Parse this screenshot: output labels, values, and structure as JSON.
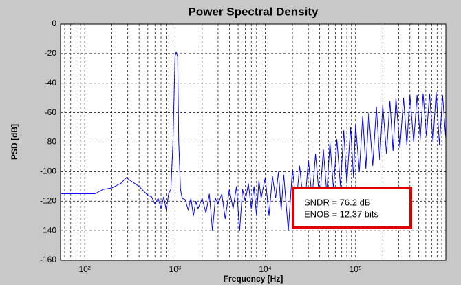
{
  "chart_data": {
    "type": "line",
    "title": "Power Spectral Density",
    "xlabel": "Frequency [Hz]",
    "ylabel": "PSD [dB]",
    "xscale": "log",
    "grid": true,
    "xlim": [
      54,
      1000000
    ],
    "ylim": [
      -160,
      0
    ],
    "yticks": [
      0,
      -20,
      -40,
      -60,
      -80,
      -100,
      -120,
      -140,
      -160
    ],
    "xticks": [
      {
        "value": 100,
        "label": "10²"
      },
      {
        "value": 1000,
        "label": "10³"
      },
      {
        "value": 10000,
        "label": "10⁴"
      },
      {
        "value": 100000,
        "label": "10⁵"
      }
    ],
    "xminor_grid": [
      60,
      70,
      80,
      90,
      200,
      300,
      400,
      500,
      600,
      700,
      800,
      900,
      2000,
      3000,
      4000,
      5000,
      6000,
      7000,
      8000,
      9000,
      20000,
      30000,
      40000,
      50000,
      60000,
      70000,
      80000,
      90000,
      200000,
      300000,
      400000,
      500000,
      600000,
      700000,
      800000,
      900000
    ],
    "annotations": [
      "SNDR = 76.2 dB",
      "ENOB = 12.37 bits"
    ],
    "series": [
      {
        "name": "PSD",
        "color": "#0000ff",
        "x": [
          54,
          80,
          100,
          130,
          160,
          200,
          250,
          290,
          320,
          400,
          500,
          550,
          600,
          650,
          700,
          750,
          800,
          850,
          900,
          950,
          1000,
          1030,
          1070,
          1100,
          1150,
          1200,
          1300,
          1400,
          1500,
          1600,
          1700,
          1800,
          2000,
          2200,
          2400,
          2600,
          2800,
          3000,
          3300,
          3600,
          4000,
          4400,
          4800,
          5200,
          5600,
          6000,
          6500,
          7000,
          7500,
          8000,
          8500,
          9000,
          10000,
          11000,
          12000,
          13000,
          14000,
          15000,
          16000,
          18000,
          20000,
          22000,
          24000,
          27000,
          30000,
          33000,
          36000,
          40000,
          44000,
          48000,
          52000,
          57000,
          62000,
          68000,
          74000,
          80000,
          88000,
          95000,
          100000,
          110000,
          120000,
          130000,
          140000,
          155000,
          170000,
          185000,
          200000,
          220000,
          240000,
          260000,
          280000,
          310000,
          340000,
          370000,
          400000,
          440000,
          480000,
          520000,
          560000,
          610000,
          660000,
          720000,
          780000,
          850000,
          920000,
          1000000
        ],
        "values": [
          -115,
          -115,
          -115,
          -115,
          -112,
          -111,
          -108,
          -104,
          -106,
          -110,
          -116,
          -117,
          -122,
          -118,
          -125,
          -117,
          -126,
          -115,
          -112,
          -80,
          -22,
          -19,
          -22,
          -80,
          -112,
          -118,
          -119,
          -126,
          -118,
          -130,
          -120,
          -125,
          -118,
          -128,
          -115,
          -140,
          -118,
          -122,
          -115,
          -132,
          -112,
          -125,
          -110,
          -140,
          -112,
          -120,
          -108,
          -125,
          -110,
          -130,
          -106,
          -118,
          -104,
          -130,
          -103,
          -118,
          -100,
          -126,
          -102,
          -140,
          -98,
          -122,
          -96,
          -128,
          -92,
          -118,
          -88,
          -120,
          -85,
          -115,
          -80,
          -112,
          -78,
          -110,
          -72,
          -108,
          -70,
          -104,
          -68,
          -100,
          -62,
          -98,
          -60,
          -96,
          -56,
          -92,
          -55,
          -88,
          -52,
          -86,
          -50,
          -84,
          -50,
          -82,
          -48,
          -80,
          -48,
          -78,
          -47,
          -76,
          -47,
          -80,
          -46,
          -82,
          -48,
          -78
        ]
      }
    ]
  }
}
